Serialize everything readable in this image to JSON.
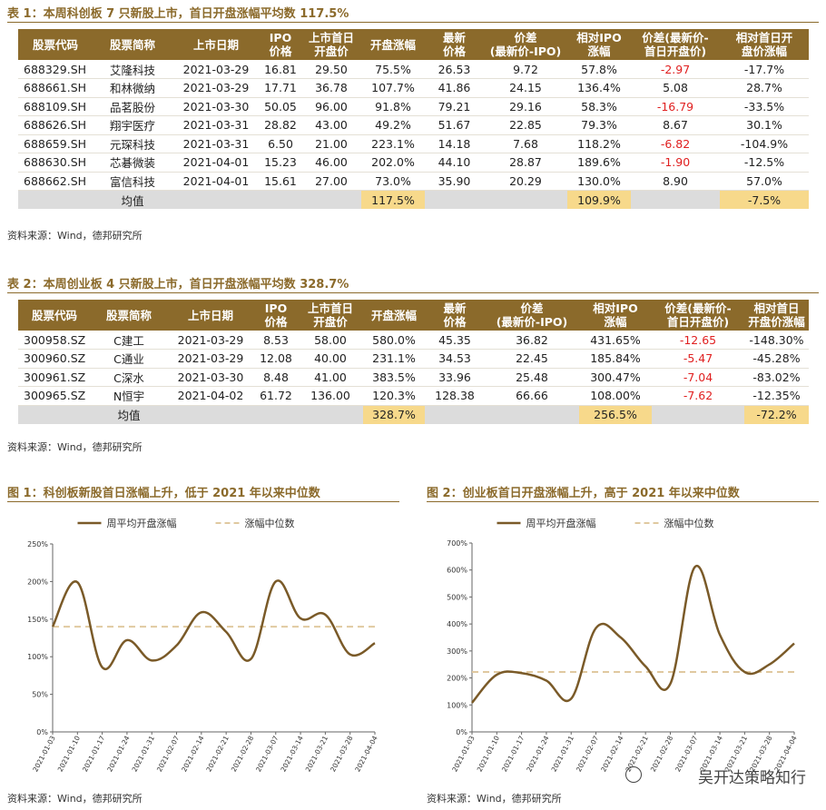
{
  "table1": {
    "caption": "表 1：本周科创板 7 只新股上市，首日开盘涨幅平均数 117.5%",
    "headers": [
      [
        "股票代码"
      ],
      [
        "股票简称"
      ],
      [
        "上市日期"
      ],
      [
        "IPO",
        "价格"
      ],
      [
        "上市首日",
        "开盘价"
      ],
      [
        "开盘涨幅"
      ],
      [
        "最新",
        "价格"
      ],
      [
        "价差",
        "(最新价-IPO)"
      ],
      [
        "相对IPO",
        "涨幅"
      ],
      [
        "价差(最新价-",
        "首日开盘价)"
      ],
      [
        "相对首日开",
        "盘价涨幅"
      ]
    ],
    "rows": [
      [
        "688329.SH",
        "艾隆科技",
        "2021-03-29",
        "16.81",
        "29.50",
        "75.5%",
        "26.53",
        "9.72",
        "57.8%",
        "-2.97",
        "-17.7%"
      ],
      [
        "688661.SH",
        "和林微纳",
        "2021-03-29",
        "17.71",
        "36.78",
        "107.7%",
        "41.86",
        "24.15",
        "136.4%",
        "5.08",
        "28.7%"
      ],
      [
        "688109.SH",
        "品茗股份",
        "2021-03-30",
        "50.05",
        "96.00",
        "91.8%",
        "79.21",
        "29.16",
        "58.3%",
        "-16.79",
        "-33.5%"
      ],
      [
        "688626.SH",
        "翔宇医疗",
        "2021-03-31",
        "28.82",
        "43.00",
        "49.2%",
        "51.67",
        "22.85",
        "79.3%",
        "8.67",
        "30.1%"
      ],
      [
        "688659.SH",
        "元琛科技",
        "2021-03-31",
        "6.50",
        "21.00",
        "223.1%",
        "14.18",
        "7.68",
        "118.2%",
        "-6.82",
        "-104.9%"
      ],
      [
        "688630.SH",
        "芯碁微装",
        "2021-04-01",
        "15.23",
        "46.00",
        "202.0%",
        "44.10",
        "28.87",
        "189.6%",
        "-1.90",
        "-12.5%"
      ],
      [
        "688662.SH",
        "富信科技",
        "2021-04-01",
        "15.61",
        "27.00",
        "73.0%",
        "35.90",
        "20.29",
        "130.0%",
        "8.90",
        "57.0%"
      ]
    ],
    "avg": [
      "均值",
      "117.5%",
      "109.9%",
      "-7.5%"
    ],
    "source": "资料来源：Wind，德邦研究所"
  },
  "table2": {
    "caption": "表 2：本周创业板 4 只新股上市，首日开盘涨幅平均数 328.7%",
    "headers": [
      [
        "股票代码"
      ],
      [
        "股票简称"
      ],
      [
        "上市日期"
      ],
      [
        "IPO",
        "价格"
      ],
      [
        "上市首日",
        "开盘价"
      ],
      [
        "开盘涨幅"
      ],
      [
        "最新",
        "价格"
      ],
      [
        "价差",
        "(最新价-IPO)"
      ],
      [
        "相对IPO",
        "涨幅"
      ],
      [
        "价差(最新价-",
        "首日开盘价)"
      ],
      [
        "相对首日",
        "开盘价涨幅"
      ]
    ],
    "rows": [
      [
        "300958.SZ",
        "C建工",
        "2021-03-29",
        "8.53",
        "58.00",
        "580.0%",
        "45.35",
        "36.82",
        "431.65%",
        "-12.65",
        "-148.30%"
      ],
      [
        "300960.SZ",
        "C通业",
        "2021-03-29",
        "12.08",
        "40.00",
        "231.1%",
        "34.53",
        "22.45",
        "185.84%",
        "-5.47",
        "-45.28%"
      ],
      [
        "300961.SZ",
        "C深水",
        "2021-03-30",
        "8.48",
        "41.00",
        "383.5%",
        "33.96",
        "25.48",
        "300.47%",
        "-7.04",
        "-83.02%"
      ],
      [
        "300965.SZ",
        "N恒宇",
        "2021-04-02",
        "61.72",
        "136.00",
        "120.3%",
        "128.38",
        "66.66",
        "108.00%",
        "-7.62",
        "-12.35%"
      ]
    ],
    "avg": [
      "均值",
      "328.7%",
      "256.5%",
      "-72.2%"
    ],
    "source": "资料来源：Wind，德邦研究所"
  },
  "chart_data": [
    {
      "type": "line",
      "title": "图 1：科创板新股首日涨幅上升，低于 2021 年以来中位数",
      "legend": [
        "周平均开盘涨幅",
        "涨幅中位数"
      ],
      "legend_placement": "top",
      "x": [
        "2021-01-03",
        "2021-01-10",
        "2021-01-17",
        "2021-01-24",
        "2021-01-31",
        "2021-02-07",
        "2021-02-14",
        "2021-02-21",
        "2021-02-28",
        "2021-03-07",
        "2021-03-14",
        "2021-03-21",
        "2021-03-28",
        "2021-04-04"
      ],
      "series": [
        {
          "name": "周平均开盘涨幅",
          "values": [
            140,
            199,
            86,
            122,
            95,
            115,
            159,
            133,
            97,
            200,
            151,
            156,
            103,
            118
          ]
        },
        {
          "name": "涨幅中位数",
          "values": [
            140,
            140,
            140,
            140,
            140,
            140,
            140,
            140,
            140,
            140,
            140,
            140,
            140,
            140
          ]
        }
      ],
      "ylim": [
        0,
        250
      ],
      "yticks": [
        "0%",
        "50%",
        "100%",
        "150%",
        "200%",
        "250%"
      ],
      "grid": false,
      "source": "资料来源：Wind，德邦研究所"
    },
    {
      "type": "line",
      "title": "图 2：创业板首日开盘涨幅上升，高于 2021 年以来中位数",
      "legend": [
        "周平均开盘涨幅",
        "涨幅中位数"
      ],
      "legend_placement": "top",
      "x": [
        "2021-01-03",
        "2021-01-10",
        "2021-01-17",
        "2021-01-24",
        "2021-01-31",
        "2021-02-07",
        "2021-02-14",
        "2021-02-21",
        "2021-02-28",
        "2021-03-07",
        "2021-03-14",
        "2021-03-21",
        "2021-03-28",
        "2021-04-04"
      ],
      "series": [
        {
          "name": "周平均开盘涨幅",
          "values": [
            108,
            212,
            218,
            190,
            123,
            385,
            350,
            243,
            178,
            612,
            360,
            222,
            250,
            328
          ]
        },
        {
          "name": "涨幅中位数",
          "values": [
            222,
            222,
            222,
            222,
            222,
            222,
            222,
            222,
            222,
            222,
            222,
            222,
            222,
            222
          ]
        }
      ],
      "ylim": [
        0,
        700
      ],
      "yticks": [
        "0%",
        "100%",
        "200%",
        "300%",
        "400%",
        "500%",
        "600%",
        "700%"
      ],
      "grid": false,
      "source": "资料来源：Wind，德邦研究所"
    }
  ],
  "watermark": "吴开达策略知行",
  "colors": {
    "accent": "#8b6a2b",
    "highlight": "#f7d98b",
    "negative": "#e02020",
    "median": "#e0c9a0",
    "line": "#7a5a28"
  }
}
